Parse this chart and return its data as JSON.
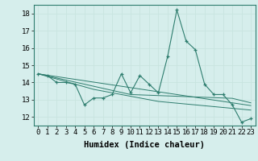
{
  "xlabel": "Humidex (Indice chaleur)",
  "x": [
    0,
    1,
    2,
    3,
    4,
    5,
    6,
    7,
    8,
    9,
    10,
    11,
    12,
    13,
    14,
    15,
    16,
    17,
    18,
    19,
    20,
    21,
    22,
    23
  ],
  "y_main": [
    14.5,
    14.4,
    14.0,
    14.0,
    13.9,
    12.7,
    13.1,
    13.1,
    13.3,
    14.5,
    13.4,
    14.4,
    13.9,
    13.4,
    15.5,
    18.2,
    16.4,
    15.9,
    13.9,
    13.3,
    13.3,
    12.7,
    11.7,
    11.9
  ],
  "y_trend1": [
    14.5,
    14.35,
    14.2,
    14.05,
    13.9,
    13.75,
    13.6,
    13.5,
    13.4,
    13.3,
    13.2,
    13.1,
    13.0,
    12.9,
    12.85,
    12.8,
    12.75,
    12.7,
    12.65,
    12.6,
    12.55,
    12.5,
    12.45,
    12.4
  ],
  "y_trend2": [
    14.5,
    14.38,
    14.26,
    14.14,
    14.02,
    13.9,
    13.78,
    13.66,
    13.54,
    13.42,
    13.3,
    13.28,
    13.26,
    13.24,
    13.22,
    13.2,
    13.18,
    13.16,
    13.14,
    13.12,
    13.1,
    13.08,
    12.95,
    12.82
  ],
  "y_trend3": [
    14.5,
    14.42,
    14.34,
    14.26,
    14.18,
    14.1,
    14.02,
    13.94,
    13.86,
    13.78,
    13.7,
    13.62,
    13.54,
    13.46,
    13.38,
    13.3,
    13.22,
    13.14,
    13.06,
    12.98,
    12.9,
    12.82,
    12.74,
    12.66
  ],
  "ylim": [
    11.5,
    18.5
  ],
  "xlim": [
    -0.5,
    23.5
  ],
  "line_color": "#2e7d6e",
  "bg_color": "#d6eeec",
  "grid_color": "#c8e4e0",
  "tick_label_fontsize": 6.5,
  "axis_label_fontsize": 7.5
}
